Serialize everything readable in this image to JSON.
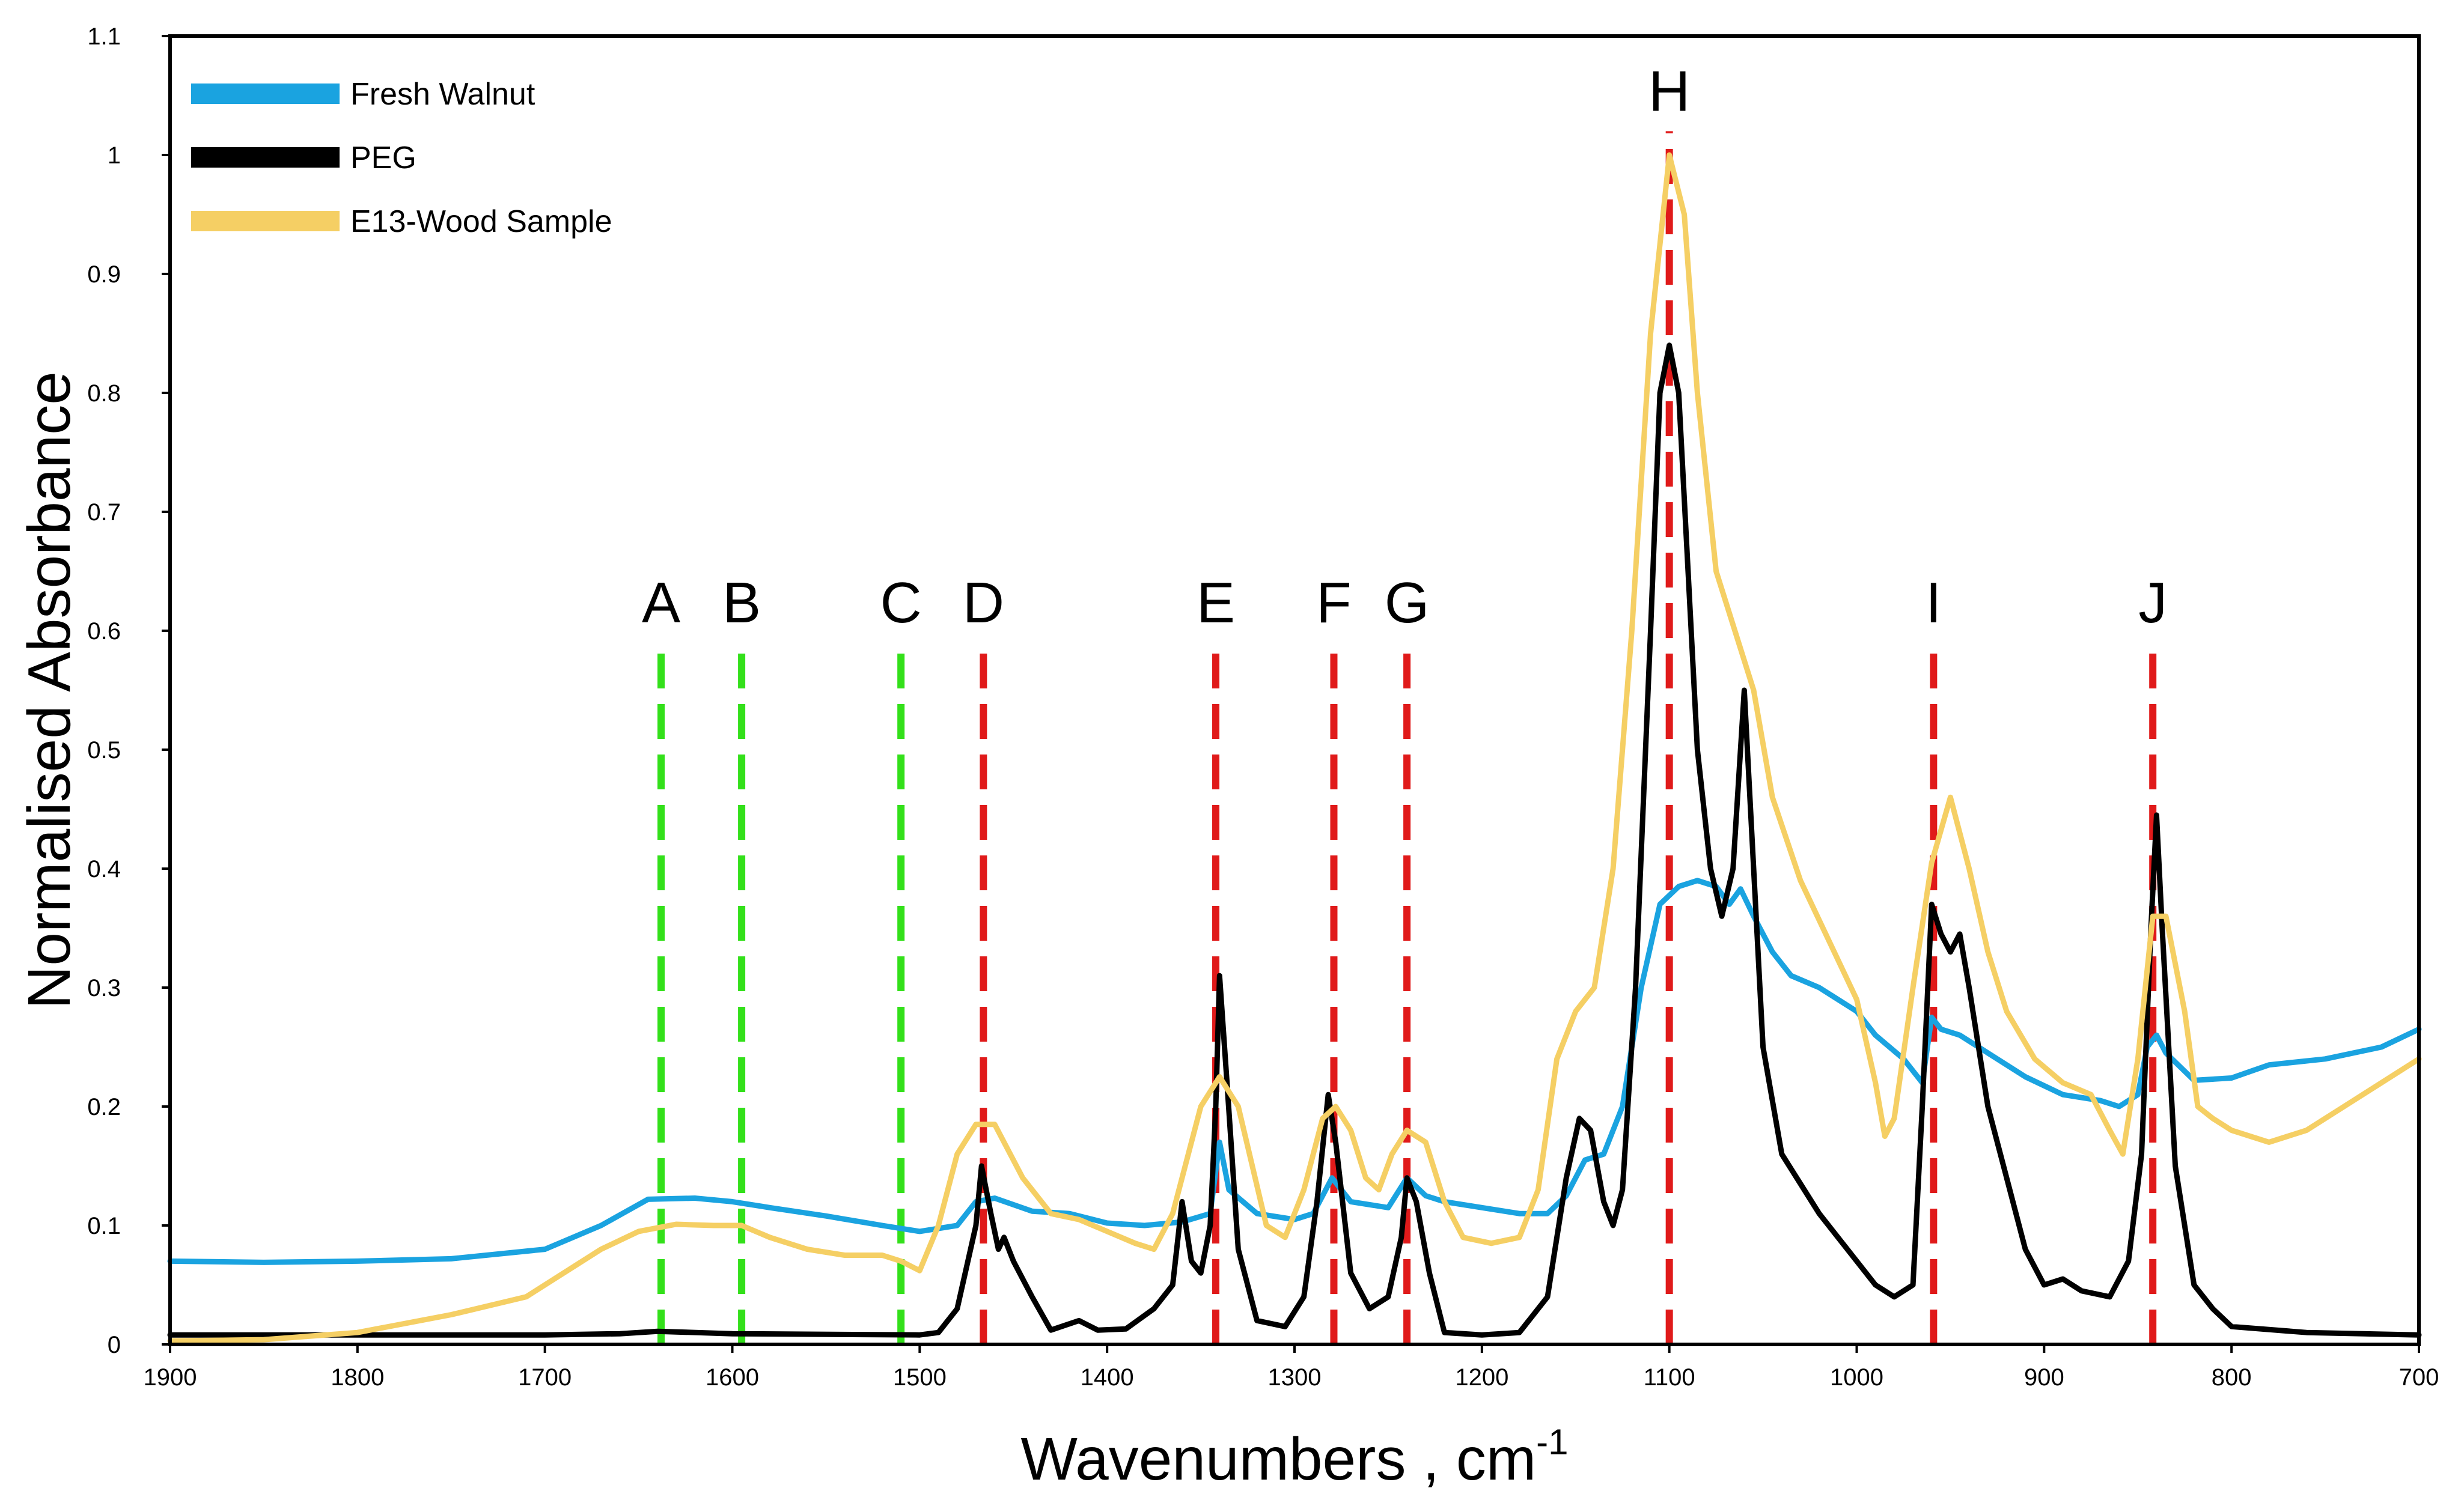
{
  "chart_data": {
    "type": "line",
    "title": "",
    "xlabel": "Wavenumbers , cm",
    "xlabel_superscript": "-1",
    "ylabel": "Normalised Absorbance",
    "xlim": [
      1900,
      700
    ],
    "ylim": [
      0,
      1.1
    ],
    "x_ticks": [
      1900,
      1800,
      1700,
      1600,
      1500,
      1400,
      1300,
      1200,
      1100,
      1000,
      900,
      800,
      700
    ],
    "y_ticks": [
      0,
      0.1,
      0.2,
      0.3,
      0.4,
      0.5,
      0.6,
      0.7,
      0.8,
      0.9,
      1,
      1.1
    ],
    "legend_position": "top-left",
    "series": [
      {
        "name": "Fresh Walnut",
        "color": "#1aa3e0",
        "points": [
          [
            1900,
            0.07
          ],
          [
            1850,
            0.069
          ],
          [
            1800,
            0.07
          ],
          [
            1750,
            0.072
          ],
          [
            1700,
            0.08
          ],
          [
            1670,
            0.1
          ],
          [
            1645,
            0.122
          ],
          [
            1620,
            0.123
          ],
          [
            1600,
            0.12
          ],
          [
            1580,
            0.115
          ],
          [
            1550,
            0.108
          ],
          [
            1520,
            0.1
          ],
          [
            1500,
            0.095
          ],
          [
            1480,
            0.1
          ],
          [
            1470,
            0.12
          ],
          [
            1460,
            0.123
          ],
          [
            1440,
            0.112
          ],
          [
            1420,
            0.11
          ],
          [
            1400,
            0.102
          ],
          [
            1380,
            0.1
          ],
          [
            1360,
            0.103
          ],
          [
            1345,
            0.11
          ],
          [
            1340,
            0.17
          ],
          [
            1335,
            0.13
          ],
          [
            1320,
            0.11
          ],
          [
            1300,
            0.105
          ],
          [
            1290,
            0.11
          ],
          [
            1280,
            0.14
          ],
          [
            1270,
            0.12
          ],
          [
            1250,
            0.115
          ],
          [
            1240,
            0.14
          ],
          [
            1230,
            0.125
          ],
          [
            1220,
            0.12
          ],
          [
            1200,
            0.115
          ],
          [
            1180,
            0.11
          ],
          [
            1165,
            0.11
          ],
          [
            1155,
            0.125
          ],
          [
            1145,
            0.155
          ],
          [
            1135,
            0.16
          ],
          [
            1125,
            0.2
          ],
          [
            1115,
            0.3
          ],
          [
            1105,
            0.37
          ],
          [
            1095,
            0.385
          ],
          [
            1085,
            0.39
          ],
          [
            1075,
            0.385
          ],
          [
            1068,
            0.37
          ],
          [
            1062,
            0.383
          ],
          [
            1055,
            0.36
          ],
          [
            1045,
            0.33
          ],
          [
            1035,
            0.31
          ],
          [
            1020,
            0.3
          ],
          [
            1000,
            0.28
          ],
          [
            990,
            0.26
          ],
          [
            975,
            0.24
          ],
          [
            965,
            0.22
          ],
          [
            960,
            0.275
          ],
          [
            955,
            0.265
          ],
          [
            945,
            0.26
          ],
          [
            930,
            0.245
          ],
          [
            910,
            0.225
          ],
          [
            890,
            0.21
          ],
          [
            870,
            0.205
          ],
          [
            860,
            0.2
          ],
          [
            850,
            0.21
          ],
          [
            845,
            0.25
          ],
          [
            840,
            0.26
          ],
          [
            835,
            0.245
          ],
          [
            820,
            0.222
          ],
          [
            800,
            0.224
          ],
          [
            780,
            0.235
          ],
          [
            750,
            0.24
          ],
          [
            720,
            0.25
          ],
          [
            700,
            0.265
          ]
        ]
      },
      {
        "name": "PEG",
        "color": "#000000",
        "points": [
          [
            1900,
            0.008
          ],
          [
            1800,
            0.008
          ],
          [
            1700,
            0.008
          ],
          [
            1660,
            0.009
          ],
          [
            1640,
            0.011
          ],
          [
            1600,
            0.009
          ],
          [
            1500,
            0.008
          ],
          [
            1490,
            0.01
          ],
          [
            1480,
            0.03
          ],
          [
            1470,
            0.1
          ],
          [
            1467,
            0.15
          ],
          [
            1462,
            0.11
          ],
          [
            1458,
            0.08
          ],
          [
            1455,
            0.09
          ],
          [
            1450,
            0.07
          ],
          [
            1440,
            0.04
          ],
          [
            1430,
            0.012
          ],
          [
            1415,
            0.02
          ],
          [
            1405,
            0.012
          ],
          [
            1390,
            0.013
          ],
          [
            1375,
            0.03
          ],
          [
            1365,
            0.05
          ],
          [
            1360,
            0.12
          ],
          [
            1355,
            0.07
          ],
          [
            1350,
            0.06
          ],
          [
            1345,
            0.1
          ],
          [
            1342,
            0.2
          ],
          [
            1340,
            0.31
          ],
          [
            1336,
            0.22
          ],
          [
            1330,
            0.08
          ],
          [
            1320,
            0.02
          ],
          [
            1305,
            0.015
          ],
          [
            1295,
            0.04
          ],
          [
            1288,
            0.12
          ],
          [
            1282,
            0.21
          ],
          [
            1278,
            0.17
          ],
          [
            1270,
            0.06
          ],
          [
            1260,
            0.03
          ],
          [
            1250,
            0.04
          ],
          [
            1243,
            0.09
          ],
          [
            1240,
            0.14
          ],
          [
            1235,
            0.12
          ],
          [
            1228,
            0.06
          ],
          [
            1220,
            0.01
          ],
          [
            1200,
            0.008
          ],
          [
            1180,
            0.01
          ],
          [
            1165,
            0.04
          ],
          [
            1155,
            0.14
          ],
          [
            1148,
            0.19
          ],
          [
            1142,
            0.18
          ],
          [
            1135,
            0.12
          ],
          [
            1130,
            0.1
          ],
          [
            1125,
            0.13
          ],
          [
            1118,
            0.3
          ],
          [
            1110,
            0.6
          ],
          [
            1105,
            0.8
          ],
          [
            1100,
            0.84
          ],
          [
            1095,
            0.8
          ],
          [
            1090,
            0.65
          ],
          [
            1085,
            0.5
          ],
          [
            1078,
            0.4
          ],
          [
            1072,
            0.36
          ],
          [
            1066,
            0.4
          ],
          [
            1060,
            0.55
          ],
          [
            1055,
            0.4
          ],
          [
            1050,
            0.25
          ],
          [
            1040,
            0.16
          ],
          [
            1020,
            0.11
          ],
          [
            1000,
            0.07
          ],
          [
            990,
            0.05
          ],
          [
            980,
            0.04
          ],
          [
            970,
            0.05
          ],
          [
            965,
            0.2
          ],
          [
            960,
            0.37
          ],
          [
            955,
            0.345
          ],
          [
            950,
            0.33
          ],
          [
            945,
            0.345
          ],
          [
            940,
            0.3
          ],
          [
            930,
            0.2
          ],
          [
            920,
            0.14
          ],
          [
            910,
            0.08
          ],
          [
            900,
            0.05
          ],
          [
            890,
            0.055
          ],
          [
            880,
            0.045
          ],
          [
            865,
            0.04
          ],
          [
            855,
            0.07
          ],
          [
            848,
            0.16
          ],
          [
            843,
            0.35
          ],
          [
            840,
            0.445
          ],
          [
            837,
            0.35
          ],
          [
            830,
            0.15
          ],
          [
            820,
            0.05
          ],
          [
            810,
            0.03
          ],
          [
            800,
            0.015
          ],
          [
            760,
            0.01
          ],
          [
            700,
            0.008
          ]
        ]
      },
      {
        "name": "E13-Wood Sample",
        "color": "#f5cf64",
        "points": [
          [
            1900,
            0.003
          ],
          [
            1850,
            0.004
          ],
          [
            1800,
            0.01
          ],
          [
            1750,
            0.025
          ],
          [
            1710,
            0.04
          ],
          [
            1690,
            0.06
          ],
          [
            1670,
            0.08
          ],
          [
            1650,
            0.095
          ],
          [
            1630,
            0.101
          ],
          [
            1610,
            0.1
          ],
          [
            1595,
            0.1
          ],
          [
            1580,
            0.09
          ],
          [
            1560,
            0.08
          ],
          [
            1540,
            0.075
          ],
          [
            1520,
            0.075
          ],
          [
            1510,
            0.07
          ],
          [
            1500,
            0.062
          ],
          [
            1490,
            0.1
          ],
          [
            1480,
            0.16
          ],
          [
            1470,
            0.185
          ],
          [
            1460,
            0.185
          ],
          [
            1445,
            0.14
          ],
          [
            1430,
            0.11
          ],
          [
            1415,
            0.105
          ],
          [
            1400,
            0.095
          ],
          [
            1385,
            0.085
          ],
          [
            1375,
            0.08
          ],
          [
            1365,
            0.11
          ],
          [
            1350,
            0.2
          ],
          [
            1340,
            0.225
          ],
          [
            1330,
            0.2
          ],
          [
            1315,
            0.1
          ],
          [
            1305,
            0.09
          ],
          [
            1295,
            0.13
          ],
          [
            1285,
            0.19
          ],
          [
            1278,
            0.2
          ],
          [
            1270,
            0.18
          ],
          [
            1262,
            0.14
          ],
          [
            1255,
            0.13
          ],
          [
            1248,
            0.16
          ],
          [
            1240,
            0.18
          ],
          [
            1230,
            0.17
          ],
          [
            1220,
            0.12
          ],
          [
            1210,
            0.09
          ],
          [
            1195,
            0.085
          ],
          [
            1180,
            0.09
          ],
          [
            1170,
            0.13
          ],
          [
            1160,
            0.24
          ],
          [
            1150,
            0.28
          ],
          [
            1140,
            0.3
          ],
          [
            1130,
            0.4
          ],
          [
            1120,
            0.6
          ],
          [
            1110,
            0.85
          ],
          [
            1100,
            1.0
          ],
          [
            1092,
            0.95
          ],
          [
            1085,
            0.8
          ],
          [
            1075,
            0.65
          ],
          [
            1065,
            0.6
          ],
          [
            1055,
            0.55
          ],
          [
            1045,
            0.46
          ],
          [
            1030,
            0.39
          ],
          [
            1015,
            0.34
          ],
          [
            1000,
            0.29
          ],
          [
            990,
            0.22
          ],
          [
            985,
            0.175
          ],
          [
            980,
            0.19
          ],
          [
            970,
            0.3
          ],
          [
            960,
            0.405
          ],
          [
            950,
            0.46
          ],
          [
            940,
            0.4
          ],
          [
            930,
            0.33
          ],
          [
            920,
            0.28
          ],
          [
            905,
            0.24
          ],
          [
            890,
            0.22
          ],
          [
            875,
            0.21
          ],
          [
            865,
            0.18
          ],
          [
            858,
            0.16
          ],
          [
            850,
            0.24
          ],
          [
            842,
            0.36
          ],
          [
            835,
            0.36
          ],
          [
            825,
            0.28
          ],
          [
            818,
            0.2
          ],
          [
            810,
            0.19
          ],
          [
            800,
            0.18
          ],
          [
            780,
            0.17
          ],
          [
            760,
            0.18
          ],
          [
            740,
            0.2
          ],
          [
            720,
            0.22
          ],
          [
            700,
            0.24
          ]
        ]
      }
    ],
    "reference_lines": [
      {
        "label": "A",
        "x": 1638,
        "color": "#33e01a",
        "ymax": 0.59
      },
      {
        "label": "B",
        "x": 1595,
        "color": "#33e01a",
        "ymax": 0.59
      },
      {
        "label": "C",
        "x": 1510,
        "color": "#33e01a",
        "ymax": 0.59
      },
      {
        "label": "D",
        "x": 1466,
        "color": "#e01a1a",
        "ymax": 0.59
      },
      {
        "label": "E",
        "x": 1342,
        "color": "#e01a1a",
        "ymax": 0.59
      },
      {
        "label": "F",
        "x": 1279,
        "color": "#e01a1a",
        "ymax": 0.59
      },
      {
        "label": "G",
        "x": 1240,
        "color": "#e01a1a",
        "ymax": 0.59
      },
      {
        "label": "H",
        "x": 1100,
        "color": "#e01a1a",
        "ymax": 1.02
      },
      {
        "label": "I",
        "x": 959,
        "color": "#e01a1a",
        "ymax": 0.59
      },
      {
        "label": "J",
        "x": 842,
        "color": "#e01a1a",
        "ymax": 0.59
      }
    ]
  }
}
